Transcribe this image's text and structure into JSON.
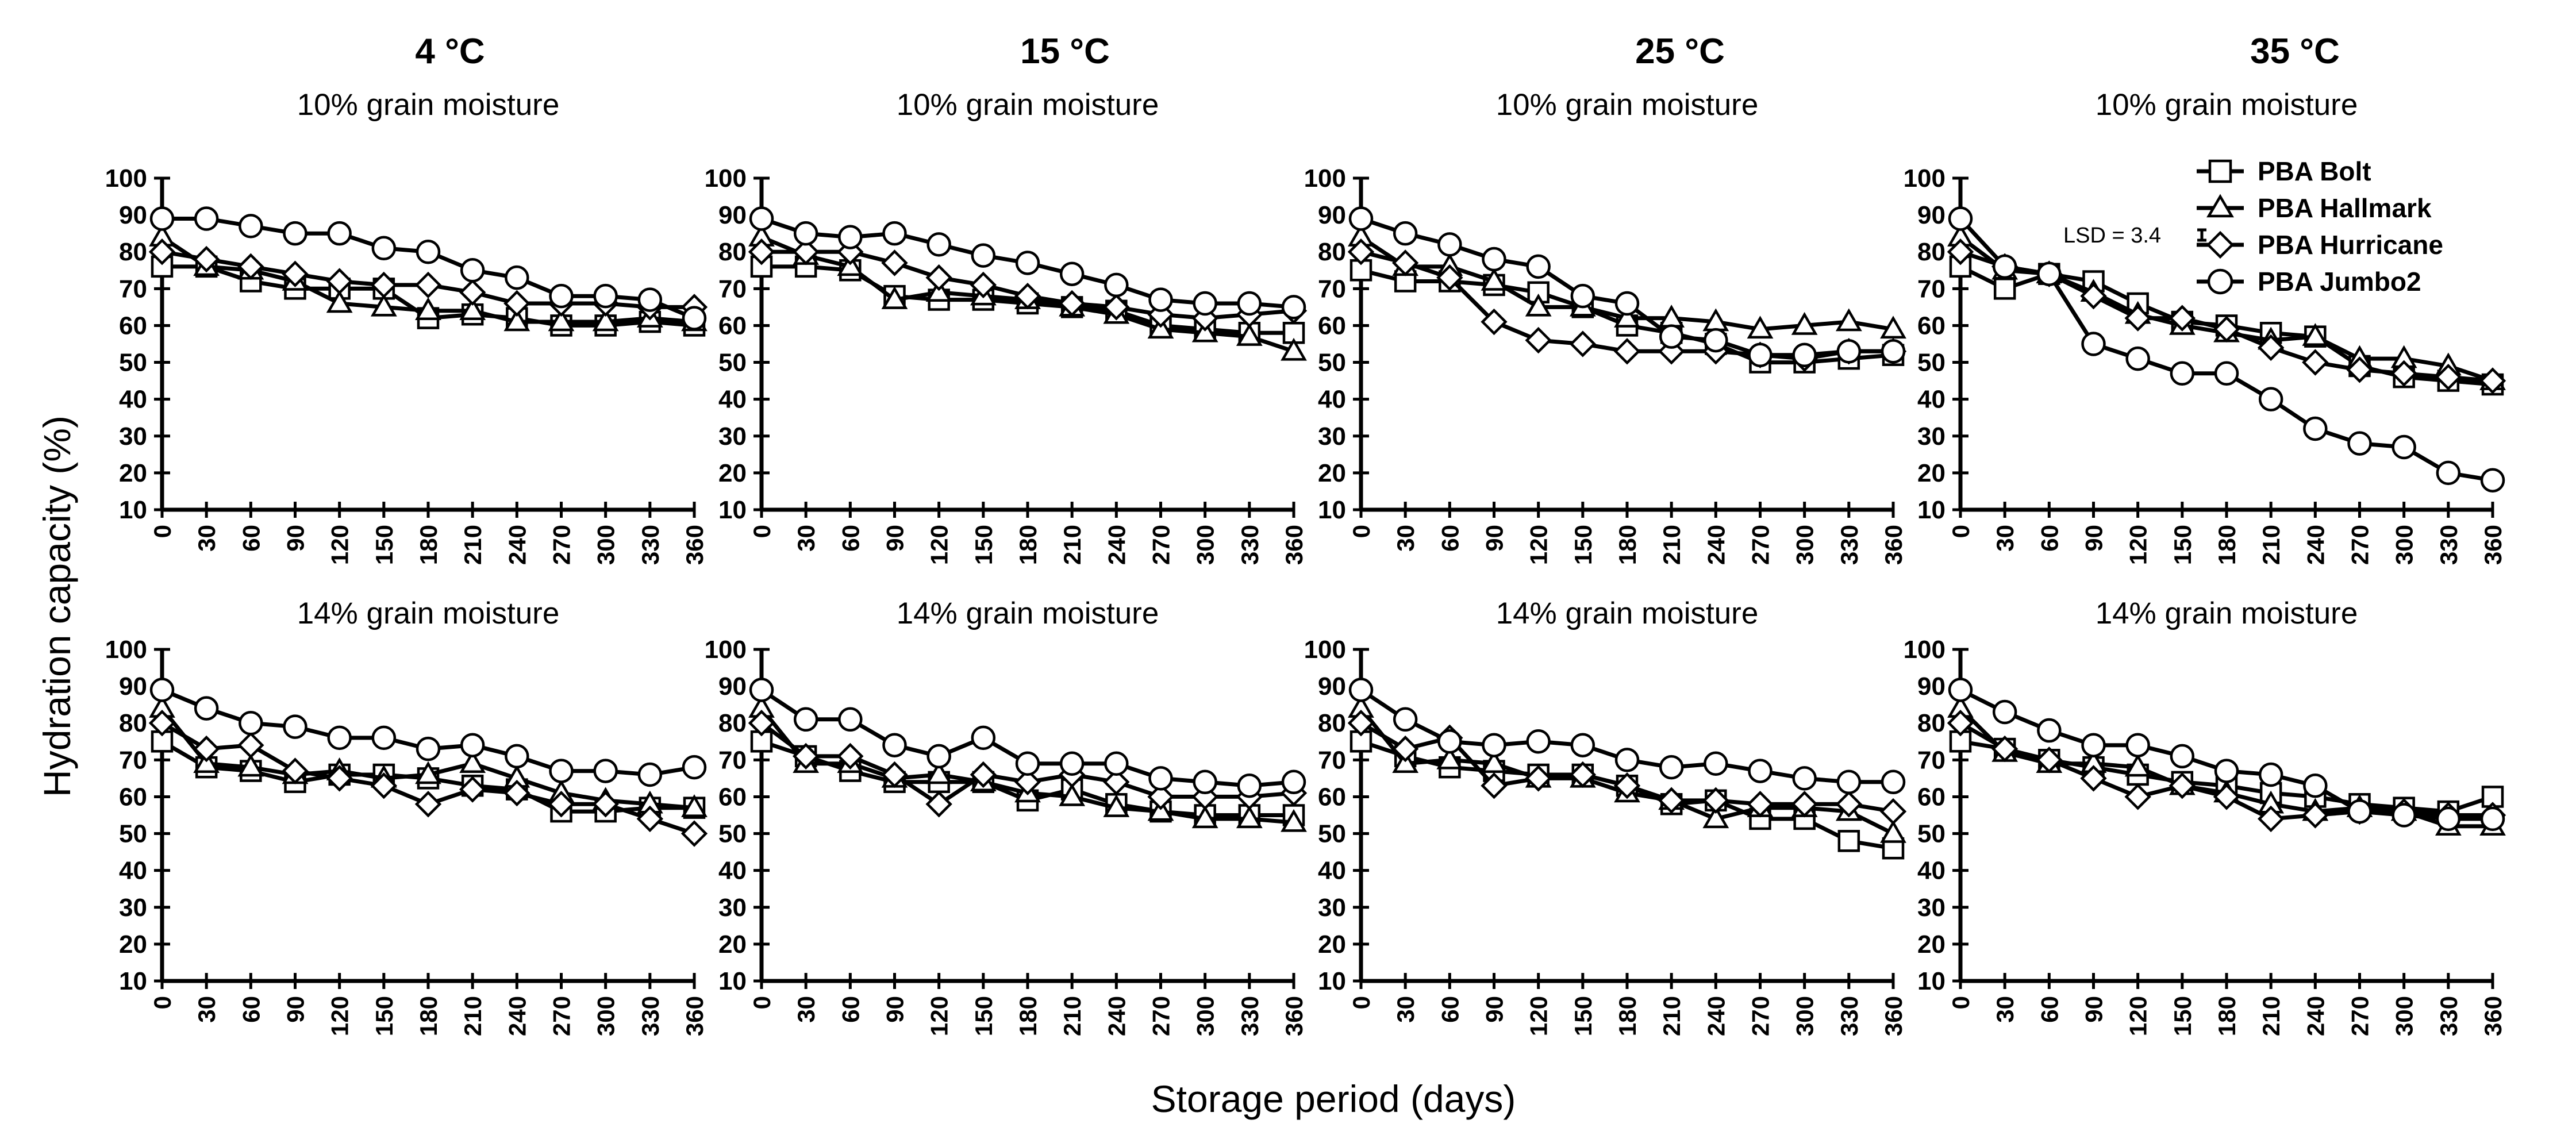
{
  "figure": {
    "y_axis_label": "Hydration capacity (%)",
    "x_axis_label": "Storage period (days)",
    "temperature_titles": [
      "4 °C",
      "15 °C",
      "25 °C",
      "35 °C"
    ],
    "legend": [
      {
        "name": "PBA Bolt",
        "marker": "square"
      },
      {
        "name": "PBA Hallmark",
        "marker": "triangle"
      },
      {
        "name": "PBA Hurricane",
        "marker": "diamond"
      },
      {
        "name": "PBA Jumbo2",
        "marker": "circle"
      }
    ],
    "lsd_label": "LSD = 3.4"
  },
  "chart_data": [
    {
      "type": "line",
      "title": "4 °C",
      "subtitle": "10% grain moisture",
      "xlabel": "Storage period (days)",
      "ylabel": "Hydration capacity (%)",
      "x": [
        0,
        30,
        60,
        90,
        120,
        150,
        180,
        210,
        240,
        270,
        300,
        330,
        360
      ],
      "ylim": [
        10,
        100
      ],
      "yticks": [
        10,
        20,
        30,
        40,
        50,
        60,
        70,
        80,
        90,
        100
      ],
      "series": [
        {
          "name": "PBA Bolt",
          "values": [
            76,
            76,
            72,
            70,
            70,
            70,
            62,
            63,
            62,
            60,
            60,
            61,
            60
          ]
        },
        {
          "name": "PBA Hallmark",
          "values": [
            84,
            76,
            75,
            72,
            66,
            65,
            64,
            64,
            61,
            61,
            61,
            62,
            61
          ]
        },
        {
          "name": "PBA Hurricane",
          "values": [
            80,
            78,
            76,
            74,
            72,
            71,
            71,
            69,
            66,
            66,
            66,
            65,
            65
          ]
        },
        {
          "name": "PBA Jumbo2",
          "values": [
            89,
            89,
            87,
            85,
            85,
            81,
            80,
            75,
            73,
            68,
            68,
            67,
            62
          ]
        }
      ]
    },
    {
      "type": "line",
      "title": "15 °C",
      "subtitle": "10% grain moisture",
      "xlabel": "Storage period (days)",
      "ylabel": "Hydration capacity (%)",
      "x": [
        0,
        30,
        60,
        90,
        120,
        150,
        180,
        210,
        240,
        270,
        300,
        330,
        360
      ],
      "ylim": [
        10,
        100
      ],
      "yticks": [
        10,
        20,
        30,
        40,
        50,
        60,
        70,
        80,
        90,
        100
      ],
      "series": [
        {
          "name": "PBA Bolt",
          "values": [
            76,
            76,
            75,
            68,
            67,
            67,
            66,
            65,
            64,
            60,
            59,
            58,
            58
          ]
        },
        {
          "name": "PBA Hallmark",
          "values": [
            84,
            79,
            76,
            67,
            69,
            68,
            67,
            65,
            63,
            59,
            58,
            57,
            53
          ]
        },
        {
          "name": "PBA Hurricane",
          "values": [
            80,
            80,
            80,
            77,
            73,
            71,
            68,
            66,
            65,
            63,
            62,
            63,
            64
          ]
        },
        {
          "name": "PBA Jumbo2",
          "values": [
            89,
            85,
            84,
            85,
            82,
            79,
            77,
            74,
            71,
            67,
            66,
            66,
            65
          ]
        }
      ]
    },
    {
      "type": "line",
      "title": "25 °C",
      "subtitle": "10% grain moisture",
      "xlabel": "Storage period (days)",
      "ylabel": "Hydration capacity (%)",
      "x": [
        0,
        30,
        60,
        90,
        120,
        150,
        180,
        210,
        240,
        270,
        300,
        330,
        360
      ],
      "ylim": [
        10,
        100
      ],
      "yticks": [
        10,
        20,
        30,
        40,
        50,
        60,
        70,
        80,
        90,
        100
      ],
      "series": [
        {
          "name": "PBA Bolt",
          "values": [
            75,
            72,
            72,
            71,
            69,
            65,
            60,
            58,
            55,
            50,
            50,
            51,
            52
          ]
        },
        {
          "name": "PBA Hallmark",
          "values": [
            84,
            76,
            76,
            72,
            65,
            65,
            62,
            62,
            61,
            59,
            60,
            61,
            59
          ]
        },
        {
          "name": "PBA Hurricane",
          "values": [
            80,
            77,
            73,
            61,
            56,
            55,
            53,
            53,
            53,
            52,
            51,
            53,
            53
          ]
        },
        {
          "name": "PBA Jumbo2",
          "values": [
            89,
            85,
            82,
            78,
            76,
            68,
            66,
            57,
            56,
            52,
            52,
            53,
            53
          ]
        }
      ]
    },
    {
      "type": "line",
      "title": "35 °C",
      "subtitle": "10% grain moisture",
      "xlabel": "Storage period (days)",
      "ylabel": "Hydration capacity (%)",
      "x": [
        0,
        30,
        60,
        90,
        120,
        150,
        180,
        210,
        240,
        270,
        300,
        330,
        360
      ],
      "ylim": [
        10,
        100
      ],
      "yticks": [
        10,
        20,
        30,
        40,
        50,
        60,
        70,
        80,
        90,
        100
      ],
      "series": [
        {
          "name": "PBA Bolt",
          "values": [
            76,
            70,
            74,
            72,
            66,
            61,
            60,
            58,
            57,
            49,
            46,
            45,
            44
          ]
        },
        {
          "name": "PBA Hallmark",
          "values": [
            84,
            75,
            74,
            69,
            63,
            60,
            58,
            56,
            57,
            51,
            51,
            49,
            45
          ]
        },
        {
          "name": "PBA Hurricane",
          "values": [
            80,
            76,
            74,
            68,
            62,
            62,
            59,
            54,
            50,
            48,
            47,
            46,
            45
          ]
        },
        {
          "name": "PBA Jumbo2",
          "values": [
            89,
            76,
            74,
            55,
            51,
            47,
            47,
            40,
            32,
            28,
            27,
            20,
            18
          ]
        }
      ],
      "annotations": [
        {
          "text": "LSD = 3.4",
          "error_bar_half_width": 1.7
        }
      ]
    },
    {
      "type": "line",
      "title": "",
      "subtitle": "14% grain moisture",
      "xlabel": "Storage period (days)",
      "ylabel": "Hydration capacity (%)",
      "x": [
        0,
        30,
        60,
        90,
        120,
        150,
        180,
        210,
        240,
        270,
        300,
        330,
        360
      ],
      "ylim": [
        10,
        100
      ],
      "yticks": [
        10,
        20,
        30,
        40,
        50,
        60,
        70,
        80,
        90,
        100
      ],
      "series": [
        {
          "name": "PBA Bolt",
          "values": [
            75,
            68,
            67,
            64,
            66,
            66,
            65,
            63,
            62,
            56,
            56,
            57,
            57
          ]
        },
        {
          "name": "PBA Hallmark",
          "values": [
            84,
            69,
            68,
            66,
            67,
            65,
            66,
            69,
            65,
            61,
            59,
            58,
            57
          ]
        },
        {
          "name": "PBA Hurricane",
          "values": [
            80,
            73,
            74,
            67,
            65,
            63,
            58,
            62,
            61,
            58,
            58,
            54,
            50
          ]
        },
        {
          "name": "PBA Jumbo2",
          "values": [
            89,
            84,
            80,
            79,
            76,
            76,
            73,
            74,
            71,
            67,
            67,
            66,
            68
          ]
        }
      ]
    },
    {
      "type": "line",
      "title": "",
      "subtitle": "14% grain moisture",
      "xlabel": "Storage period (days)",
      "ylabel": "Hydration capacity (%)",
      "x": [
        0,
        30,
        60,
        90,
        120,
        150,
        180,
        210,
        240,
        270,
        300,
        330,
        360
      ],
      "ylim": [
        10,
        100
      ],
      "yticks": [
        10,
        20,
        30,
        40,
        50,
        60,
        70,
        80,
        90,
        100
      ],
      "series": [
        {
          "name": "PBA Bolt",
          "values": [
            75,
            71,
            67,
            64,
            64,
            64,
            59,
            62,
            58,
            56,
            55,
            55,
            55
          ]
        },
        {
          "name": "PBA Hallmark",
          "values": [
            84,
            69,
            69,
            65,
            66,
            64,
            61,
            60,
            57,
            56,
            54,
            54,
            53
          ]
        },
        {
          "name": "PBA Hurricane",
          "values": [
            80,
            71,
            71,
            66,
            58,
            66,
            64,
            66,
            64,
            60,
            60,
            60,
            61
          ]
        },
        {
          "name": "PBA Jumbo2",
          "values": [
            89,
            81,
            81,
            74,
            71,
            76,
            69,
            69,
            69,
            65,
            64,
            63,
            64
          ]
        }
      ]
    },
    {
      "type": "line",
      "title": "",
      "subtitle": "14% grain moisture",
      "xlabel": "Storage period (days)",
      "ylabel": "Hydration capacity (%)",
      "x": [
        0,
        30,
        60,
        90,
        120,
        150,
        180,
        210,
        240,
        270,
        300,
        330,
        360
      ],
      "ylim": [
        10,
        100
      ],
      "yticks": [
        10,
        20,
        30,
        40,
        50,
        60,
        70,
        80,
        90,
        100
      ],
      "series": [
        {
          "name": "PBA Bolt",
          "values": [
            75,
            71,
            68,
            67,
            66,
            66,
            63,
            58,
            59,
            54,
            54,
            48,
            46
          ]
        },
        {
          "name": "PBA Hallmark",
          "values": [
            84,
            69,
            70,
            69,
            65,
            65,
            61,
            59,
            54,
            57,
            57,
            56,
            50
          ]
        },
        {
          "name": "PBA Hurricane",
          "values": [
            80,
            73,
            76,
            63,
            65,
            66,
            63,
            59,
            59,
            58,
            58,
            58,
            56
          ]
        },
        {
          "name": "PBA Jumbo2",
          "values": [
            89,
            81,
            75,
            74,
            75,
            74,
            70,
            68,
            69,
            67,
            65,
            64,
            64
          ]
        }
      ]
    },
    {
      "type": "line",
      "title": "",
      "subtitle": "14% grain moisture",
      "xlabel": "Storage period (days)",
      "ylabel": "Hydration capacity (%)",
      "x": [
        0,
        30,
        60,
        90,
        120,
        150,
        180,
        210,
        240,
        270,
        300,
        330,
        360
      ],
      "ylim": [
        10,
        100
      ],
      "yticks": [
        10,
        20,
        30,
        40,
        50,
        60,
        70,
        80,
        90,
        100
      ],
      "series": [
        {
          "name": "PBA Bolt",
          "values": [
            75,
            73,
            70,
            68,
            66,
            64,
            63,
            61,
            60,
            58,
            57,
            56,
            60
          ]
        },
        {
          "name": "PBA Hallmark",
          "values": [
            84,
            72,
            69,
            69,
            68,
            63,
            61,
            58,
            56,
            57,
            56,
            52,
            52
          ]
        },
        {
          "name": "PBA Hurricane",
          "values": [
            80,
            73,
            70,
            65,
            60,
            63,
            60,
            54,
            55,
            56,
            56,
            55,
            55
          ]
        },
        {
          "name": "PBA Jumbo2",
          "values": [
            89,
            83,
            78,
            74,
            74,
            71,
            67,
            66,
            63,
            56,
            55,
            54,
            54
          ]
        }
      ]
    }
  ]
}
